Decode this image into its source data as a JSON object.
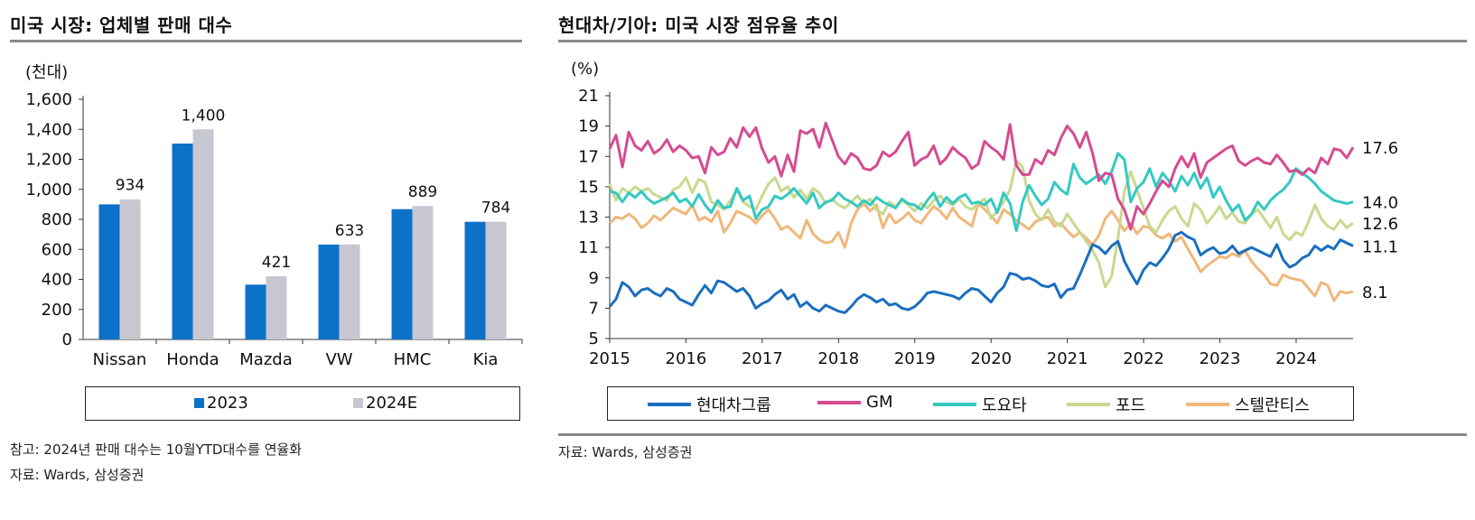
{
  "left": {
    "title": "미국 시장: 업체별 판매 대수",
    "notes": [
      "참고: 2024년 판매 대수는 10월YTD대수를 연율화",
      "자료: Wards, 삼성증권"
    ]
  },
  "right": {
    "title": "현대차/기아: 미국 시장 점유율 추이",
    "notes": [
      "자료: Wards, 삼성증권"
    ]
  },
  "colors": {
    "bar2023": "#0b72c8",
    "bar2024": "#c7c7d1",
    "hyundai": "#1a6ec0",
    "gm": "#d64b91",
    "toyota": "#33c9c2",
    "ford": "#c8d98e",
    "stellantis": "#f0b77a"
  },
  "chart_data": [
    {
      "type": "bar",
      "title": "미국 시장: 업체별 판매 대수",
      "ylabel": "(천대)",
      "ylim": [
        0,
        1600
      ],
      "yticks": [
        "0",
        "200",
        "400",
        "600",
        "800",
        "1,000",
        "1,200",
        "1,400",
        "1,600"
      ],
      "categories": [
        "Nissan",
        "Honda",
        "Mazda",
        "VW",
        "HMC",
        "Kia"
      ],
      "series": [
        {
          "name": "2023",
          "values": [
            900,
            1305,
            365,
            632,
            868,
            784
          ]
        },
        {
          "name": "2024E",
          "values": [
            934,
            1400,
            421,
            633,
            889,
            784
          ]
        }
      ],
      "data_labels": [
        "934",
        "1,400",
        "421",
        "633",
        "889",
        "784"
      ]
    },
    {
      "type": "line",
      "title": "현대차/기아: 미국 시장 점유율 추이",
      "ylabel": "(%)",
      "ylim": [
        5,
        21
      ],
      "yticks": [
        "5",
        "7",
        "9",
        "11",
        "13",
        "15",
        "17",
        "19",
        "21"
      ],
      "x_labels": [
        "2015",
        "2016",
        "2017",
        "2018",
        "2019",
        "2020",
        "2021",
        "2022",
        "2023",
        "2024"
      ],
      "x_start": 2015.0,
      "x_step": 0.0833,
      "series": [
        {
          "name": "현대차그룹",
          "end_label": "11.1",
          "values": [
            7.1,
            7.6,
            8.7,
            8.4,
            7.8,
            8.2,
            8.3,
            8.0,
            7.8,
            8.3,
            8.1,
            7.6,
            7.4,
            7.2,
            7.9,
            8.5,
            8.0,
            8.8,
            8.7,
            8.4,
            8.1,
            8.3,
            7.8,
            7.0,
            7.3,
            7.5,
            7.9,
            8.2,
            7.6,
            7.9,
            7.1,
            7.4,
            7.0,
            6.8,
            7.2,
            7.0,
            6.8,
            6.7,
            7.1,
            7.6,
            7.9,
            7.7,
            7.4,
            7.6,
            7.2,
            7.3,
            7.0,
            6.9,
            7.1,
            7.5,
            8.0,
            8.1,
            8.0,
            7.9,
            7.8,
            7.6,
            8.0,
            8.3,
            8.2,
            7.8,
            7.4,
            8.0,
            8.4,
            9.3,
            9.2,
            8.9,
            9.0,
            8.8,
            8.5,
            8.4,
            8.6,
            7.7,
            8.2,
            8.3,
            9.2,
            10.2,
            11.2,
            11.0,
            10.6,
            11.1,
            11.4,
            10.1,
            9.3,
            8.6,
            9.5,
            10.0,
            9.8,
            10.3,
            10.9,
            11.8,
            12.0,
            11.7,
            11.5,
            10.5,
            10.8,
            11.0,
            10.6,
            10.7,
            11.1,
            10.6,
            10.8,
            11.0,
            10.8,
            10.6,
            10.4,
            11.2,
            10.2,
            9.7,
            9.9,
            10.3,
            10.5,
            11.1,
            10.8,
            11.1,
            10.9,
            11.5,
            11.3,
            11.1
          ]
        },
        {
          "name": "GM",
          "end_label": "17.6",
          "values": [
            17.5,
            18.4,
            16.3,
            18.6,
            17.7,
            17.4,
            18.0,
            17.2,
            17.5,
            18.1,
            17.3,
            17.7,
            17.4,
            16.9,
            17.0,
            15.9,
            17.6,
            17.1,
            17.3,
            18.2,
            17.6,
            18.9,
            18.3,
            18.9,
            17.5,
            16.6,
            17.0,
            15.7,
            17.1,
            16.0,
            18.7,
            18.5,
            18.8,
            17.6,
            19.2,
            18.1,
            17.0,
            16.5,
            17.2,
            16.9,
            16.2,
            16.1,
            16.4,
            17.3,
            17.0,
            17.3,
            18.0,
            18.6,
            16.4,
            16.8,
            17.0,
            17.7,
            16.5,
            16.9,
            17.6,
            17.2,
            16.9,
            16.2,
            16.5,
            18.0,
            17.6,
            17.3,
            16.8,
            19.1,
            16.4,
            15.8,
            15.8,
            16.8,
            16.5,
            17.4,
            17.1,
            18.2,
            19.0,
            18.5,
            17.6,
            18.6,
            17.2,
            15.4,
            15.9,
            15.8,
            14.2,
            13.5,
            12.2,
            13.7,
            13.2,
            13.9,
            14.7,
            15.4,
            15.0,
            16.2,
            17.0,
            16.3,
            17.2,
            15.6,
            16.6,
            16.9,
            17.2,
            17.5,
            17.7,
            16.7,
            16.4,
            16.7,
            16.9,
            16.6,
            16.5,
            17.1,
            16.6,
            16.0,
            16.1,
            15.8,
            16.2,
            15.9,
            16.9,
            16.5,
            17.5,
            17.4,
            16.9,
            17.6
          ]
        },
        {
          "name": "도요타",
          "end_label": "14.0",
          "values": [
            14.7,
            14.6,
            14.0,
            14.6,
            14.3,
            14.7,
            14.2,
            13.9,
            14.1,
            14.3,
            14.6,
            14.0,
            14.2,
            13.7,
            14.5,
            13.8,
            13.3,
            14.1,
            13.6,
            13.7,
            14.9,
            14.1,
            14.4,
            12.9,
            13.5,
            13.7,
            14.4,
            14.2,
            14.5,
            14.9,
            14.4,
            13.9,
            14.6,
            13.6,
            14.0,
            14.1,
            14.6,
            14.2,
            14.0,
            13.7,
            14.1,
            13.8,
            14.3,
            14.0,
            13.8,
            13.6,
            14.2,
            13.9,
            13.8,
            13.5,
            14.1,
            14.6,
            13.7,
            14.3,
            13.9,
            14.3,
            14.5,
            13.9,
            14.0,
            13.8,
            14.2,
            13.3,
            14.6,
            13.9,
            12.1,
            14.0,
            15.1,
            14.4,
            13.8,
            14.2,
            15.3,
            14.8,
            14.5,
            16.5,
            15.6,
            15.2,
            15.5,
            15.8,
            15.2,
            16.0,
            17.2,
            16.8,
            14.0,
            14.9,
            15.3,
            16.2,
            15.0,
            15.9,
            15.4,
            14.7,
            15.7,
            15.1,
            15.9,
            14.9,
            15.6,
            14.3,
            15.0,
            14.1,
            13.4,
            13.8,
            12.8,
            13.2,
            14.0,
            13.5,
            14.1,
            14.5,
            14.8,
            15.3,
            16.2,
            15.9,
            15.6,
            15.2,
            14.7,
            14.4,
            14.1,
            14.0,
            13.9,
            14.0
          ]
        },
        {
          "name": "포드",
          "end_label": "12.6",
          "values": [
            15.2,
            14.1,
            14.9,
            14.6,
            15.0,
            14.7,
            14.9,
            14.5,
            14.3,
            14.1,
            14.8,
            15.0,
            15.6,
            14.6,
            15.5,
            15.3,
            14.0,
            13.8,
            13.5,
            14.1,
            14.8,
            14.0,
            13.7,
            13.5,
            14.4,
            15.2,
            15.6,
            14.7,
            15.0,
            14.3,
            14.8,
            14.2,
            14.9,
            14.6,
            13.9,
            14.2,
            13.8,
            13.6,
            14.0,
            14.4,
            13.9,
            14.2,
            13.5,
            13.2,
            14.0,
            13.7,
            14.1,
            13.8,
            13.4,
            13.9,
            13.6,
            14.1,
            14.4,
            14.0,
            13.8,
            14.2,
            13.7,
            13.5,
            13.9,
            14.2,
            12.9,
            13.4,
            14.0,
            14.8,
            16.7,
            16.3,
            14.1,
            13.2,
            12.8,
            13.5,
            12.7,
            12.4,
            13.2,
            12.6,
            12.0,
            11.4,
            10.8,
            10.0,
            8.4,
            9.1,
            11.6,
            14.7,
            16.0,
            14.8,
            13.6,
            12.4,
            12.0,
            12.8,
            13.4,
            13.7,
            12.9,
            12.4,
            13.9,
            13.5,
            12.6,
            13.1,
            13.7,
            12.9,
            13.3,
            12.7,
            12.6,
            13.2,
            13.5,
            12.9,
            12.3,
            13.0,
            11.9,
            11.5,
            12.0,
            11.8,
            12.7,
            13.8,
            12.9,
            12.4,
            12.2,
            12.8,
            12.3,
            12.6
          ]
        },
        {
          "name": "스텔란티스",
          "end_label": "8.1",
          "values": [
            12.6,
            13.0,
            12.9,
            13.2,
            12.9,
            12.3,
            12.6,
            13.1,
            12.8,
            13.2,
            13.6,
            13.4,
            13.2,
            13.8,
            12.8,
            13.0,
            12.7,
            13.4,
            12.0,
            12.6,
            13.4,
            13.2,
            13.0,
            12.6,
            13.1,
            13.5,
            12.9,
            12.2,
            12.4,
            12.0,
            11.6,
            12.8,
            11.9,
            11.5,
            11.3,
            11.4,
            12.0,
            11.0,
            12.6,
            13.5,
            13.9,
            13.4,
            13.8,
            12.3,
            13.2,
            12.6,
            12.9,
            13.3,
            12.8,
            12.6,
            13.2,
            13.7,
            13.4,
            12.9,
            13.6,
            13.0,
            12.7,
            12.4,
            13.9,
            13.5,
            13.1,
            12.6,
            13.5,
            13.2,
            12.8,
            12.5,
            12.2,
            12.7,
            12.9,
            13.0,
            12.4,
            12.6,
            12.1,
            11.7,
            12.0,
            11.6,
            11.2,
            11.8,
            12.9,
            13.4,
            12.8,
            12.1,
            12.6,
            11.9,
            12.4,
            12.3,
            11.8,
            11.6,
            11.9,
            11.4,
            11.7,
            10.9,
            10.2,
            9.4,
            9.8,
            10.1,
            10.4,
            10.3,
            10.6,
            10.4,
            10.8,
            10.1,
            9.6,
            9.2,
            8.6,
            8.5,
            9.2,
            9.0,
            8.9,
            8.8,
            8.3,
            7.8,
            8.7,
            8.5,
            7.5,
            8.1,
            8.0,
            8.1
          ]
        }
      ]
    }
  ]
}
